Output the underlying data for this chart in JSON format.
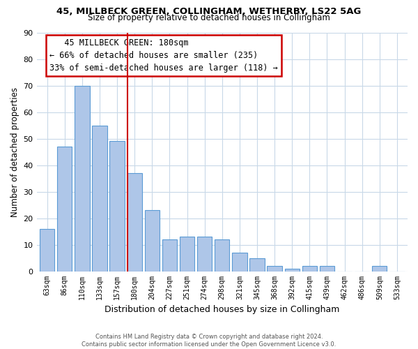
{
  "title1": "45, MILLBECK GREEN, COLLINGHAM, WETHERBY, LS22 5AG",
  "title2": "Size of property relative to detached houses in Collingham",
  "xlabel": "Distribution of detached houses by size in Collingham",
  "ylabel": "Number of detached properties",
  "categories": [
    "63sqm",
    "86sqm",
    "110sqm",
    "133sqm",
    "157sqm",
    "180sqm",
    "204sqm",
    "227sqm",
    "251sqm",
    "274sqm",
    "298sqm",
    "321sqm",
    "345sqm",
    "368sqm",
    "392sqm",
    "415sqm",
    "439sqm",
    "462sqm",
    "486sqm",
    "509sqm",
    "533sqm"
  ],
  "values": [
    16,
    47,
    70,
    55,
    49,
    37,
    23,
    12,
    13,
    13,
    12,
    7,
    5,
    2,
    1,
    2,
    2,
    0,
    0,
    2,
    0
  ],
  "bar_color": "#aec6e8",
  "bar_edge_color": "#5b9bd5",
  "highlight_index": 5,
  "highlight_line_color": "#cc0000",
  "ylim": [
    0,
    90
  ],
  "yticks": [
    0,
    10,
    20,
    30,
    40,
    50,
    60,
    70,
    80,
    90
  ],
  "annotation_title": "45 MILLBECK GREEN: 180sqm",
  "annotation_line1": "← 66% of detached houses are smaller (235)",
  "annotation_line2": "33% of semi-detached houses are larger (118) →",
  "annotation_box_color": "#ffffff",
  "annotation_box_edge": "#cc0000",
  "footer1": "Contains HM Land Registry data © Crown copyright and database right 2024.",
  "footer2": "Contains public sector information licensed under the Open Government Licence v3.0.",
  "background_color": "#ffffff",
  "grid_color": "#c8d8e8"
}
